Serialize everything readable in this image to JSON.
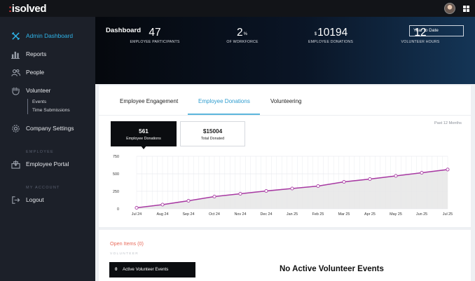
{
  "brand": {
    "logo": "isolved",
    "accent": "#2fb4e9"
  },
  "sidebar": {
    "items": [
      {
        "label": "Admin Dashboard",
        "icon": "tools-icon",
        "active": true
      },
      {
        "label": "Reports",
        "icon": "bar-chart-icon"
      },
      {
        "label": "People",
        "icon": "people-icon"
      },
      {
        "label": "Volunteer",
        "icon": "hands-icon"
      },
      {
        "label": "Company Settings",
        "icon": "gear-icon"
      },
      {
        "label": "Employee Portal",
        "icon": "portal-icon"
      },
      {
        "label": "Logout",
        "icon": "logout-icon"
      }
    ],
    "volunteer_sub": [
      "Events",
      "Time Submissions"
    ],
    "section_employee": "EMPLOYEE",
    "section_account": "MY ACCOUNT"
  },
  "header": {
    "title": "Dashboard",
    "period": "Year to Date",
    "stats": [
      {
        "value": "47",
        "prefix": "",
        "suffix": "",
        "caption": "EMPLOYEE PARTICIPANTS"
      },
      {
        "value": "2",
        "prefix": "",
        "suffix": "%",
        "caption": "OF WORKFORCE"
      },
      {
        "value": "10194",
        "prefix": "$",
        "suffix": "",
        "caption": "EMPLOYEE DONATIONS"
      },
      {
        "value": "12",
        "prefix": "",
        "suffix": "",
        "caption": "VOLUNTEER HOURS"
      }
    ]
  },
  "tabs": [
    "Employee Engagement",
    "Employee Donations",
    "Volunteering"
  ],
  "active_tab": 1,
  "range_label": "Past 12 Months",
  "metrics": [
    {
      "value": "561",
      "label": "Employee Donations"
    },
    {
      "value": "$15004",
      "label": "Total Donated"
    }
  ],
  "chart_data": {
    "type": "area",
    "categories": [
      "Jul 24",
      "Aug 24",
      "Sep 24",
      "Oct 24",
      "Nov 24",
      "Dec 24",
      "Jan 25",
      "Feb 25",
      "Mar 25",
      "Apr 25",
      "May 25",
      "Jun 25",
      "Jul 25"
    ],
    "values": [
      15,
      60,
      115,
      175,
      215,
      255,
      290,
      325,
      385,
      425,
      470,
      515,
      561
    ],
    "ylim": [
      0,
      750
    ],
    "yticks": [
      "0",
      "250",
      "500",
      "750"
    ],
    "grid": true,
    "line_color": "#a83aa3",
    "fill_color": "#e6e6e6",
    "marker_fill": "#ffffff"
  },
  "open_items": {
    "title": "Open Items (0)",
    "section": "VOLUNTEER",
    "active_count": "0",
    "active_label": "Active Volunteer Events",
    "empty_message": "No Active Volunteer Events"
  }
}
